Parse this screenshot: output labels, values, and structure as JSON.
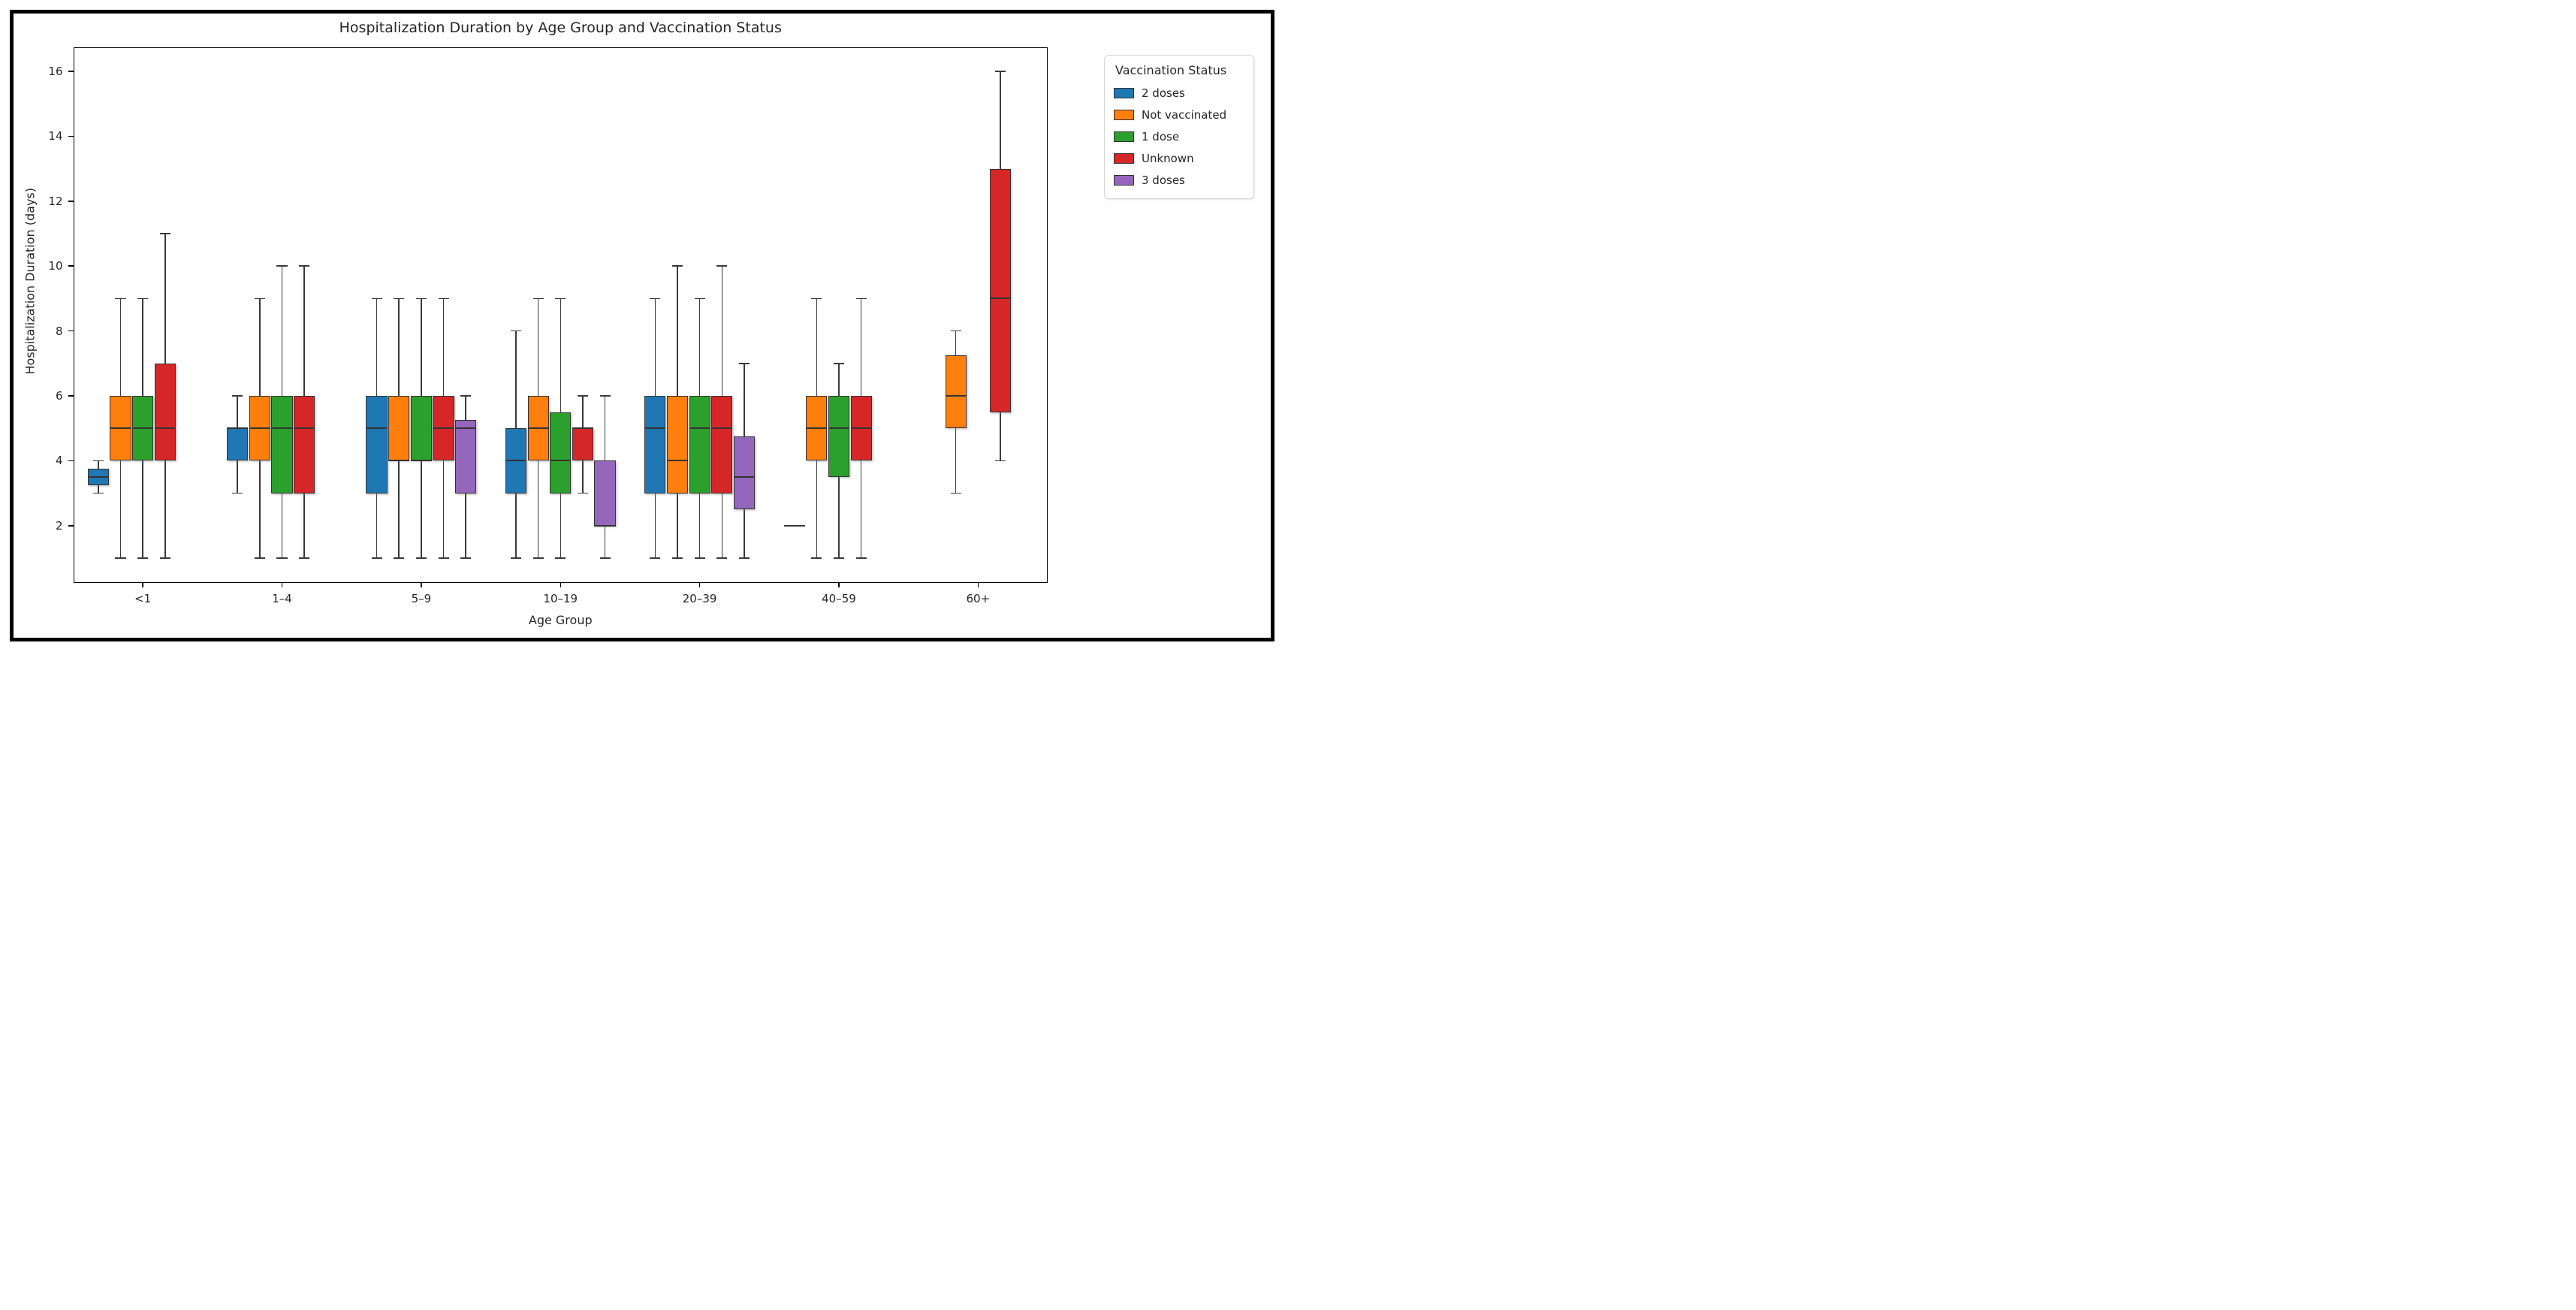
{
  "figure_title": "Hospitalization Duration by Age Group and Vaccination Status",
  "chart_data": {
    "type": "grouped_boxplot",
    "title": "Hospitalization Duration by Age Group and Vaccination Status",
    "xlabel": "Age Group",
    "ylabel": "Hospitalization Duration (days)",
    "ylim": [
      0.25,
      16.75
    ],
    "yticks": [
      2,
      4,
      6,
      8,
      10,
      12,
      14,
      16
    ],
    "categories": [
      "<1",
      "1–4",
      "5–9",
      "10–19",
      "20–39",
      "40–59",
      "60+"
    ],
    "grid": false,
    "legend": {
      "title": "Vaccination Status",
      "position": "upper right outside"
    },
    "box_stats_format": [
      "whisker_low",
      "q1",
      "median",
      "q3",
      "whisker_high"
    ],
    "series": [
      {
        "name": "2 doses",
        "color": "#1f77b4",
        "boxes": [
          [
            3,
            3.25,
            3.5,
            3.75,
            4
          ],
          [
            3,
            4,
            5,
            5,
            6
          ],
          [
            1,
            3,
            5,
            6,
            9
          ],
          [
            1,
            3,
            4,
            5,
            8
          ],
          [
            1,
            3,
            5,
            6,
            9
          ],
          [
            2,
            2,
            2,
            2,
            2
          ],
          null
        ]
      },
      {
        "name": "Not vaccinated",
        "color": "#ff7f0e",
        "boxes": [
          [
            1,
            4,
            5,
            6,
            9
          ],
          [
            1,
            4,
            5,
            6,
            9
          ],
          [
            1,
            4,
            4,
            6,
            9
          ],
          [
            1,
            4,
            5,
            6,
            9
          ],
          [
            1,
            3,
            4,
            6,
            10
          ],
          [
            1,
            4,
            5,
            6,
            9
          ],
          [
            3,
            5,
            6,
            7.25,
            8
          ]
        ]
      },
      {
        "name": "1 dose",
        "color": "#2ca02c",
        "boxes": [
          [
            1,
            4,
            5,
            6,
            9
          ],
          [
            1,
            3,
            5,
            6,
            10
          ],
          [
            1,
            4,
            4,
            6,
            9
          ],
          [
            1,
            3,
            4,
            5.5,
            9
          ],
          [
            1,
            3,
            5,
            6,
            9
          ],
          [
            1,
            3.5,
            5,
            6,
            7
          ],
          null
        ]
      },
      {
        "name": "Unknown",
        "color": "#d62728",
        "boxes": [
          [
            1,
            4,
            5,
            7,
            11
          ],
          [
            1,
            3,
            5,
            6,
            10
          ],
          [
            1,
            4,
            5,
            6,
            9
          ],
          [
            3,
            4,
            5,
            5,
            6
          ],
          [
            1,
            3,
            5,
            6,
            10
          ],
          [
            1,
            4,
            5,
            6,
            9
          ],
          [
            4,
            5.5,
            9,
            13,
            16
          ]
        ]
      },
      {
        "name": "3 doses",
        "color": "#9467bd",
        "boxes": [
          null,
          null,
          [
            1,
            3,
            5,
            5.25,
            6
          ],
          [
            1,
            2,
            2,
            4,
            6
          ],
          [
            1,
            2.5,
            3.5,
            4.75,
            7
          ],
          null,
          null
        ]
      }
    ],
    "style": {
      "box_edge_color": "#333333",
      "whisker_color": "#3a3a3a",
      "spine_color": "#000000",
      "outer_border_color": "#000000",
      "background": "#ffffff"
    }
  }
}
